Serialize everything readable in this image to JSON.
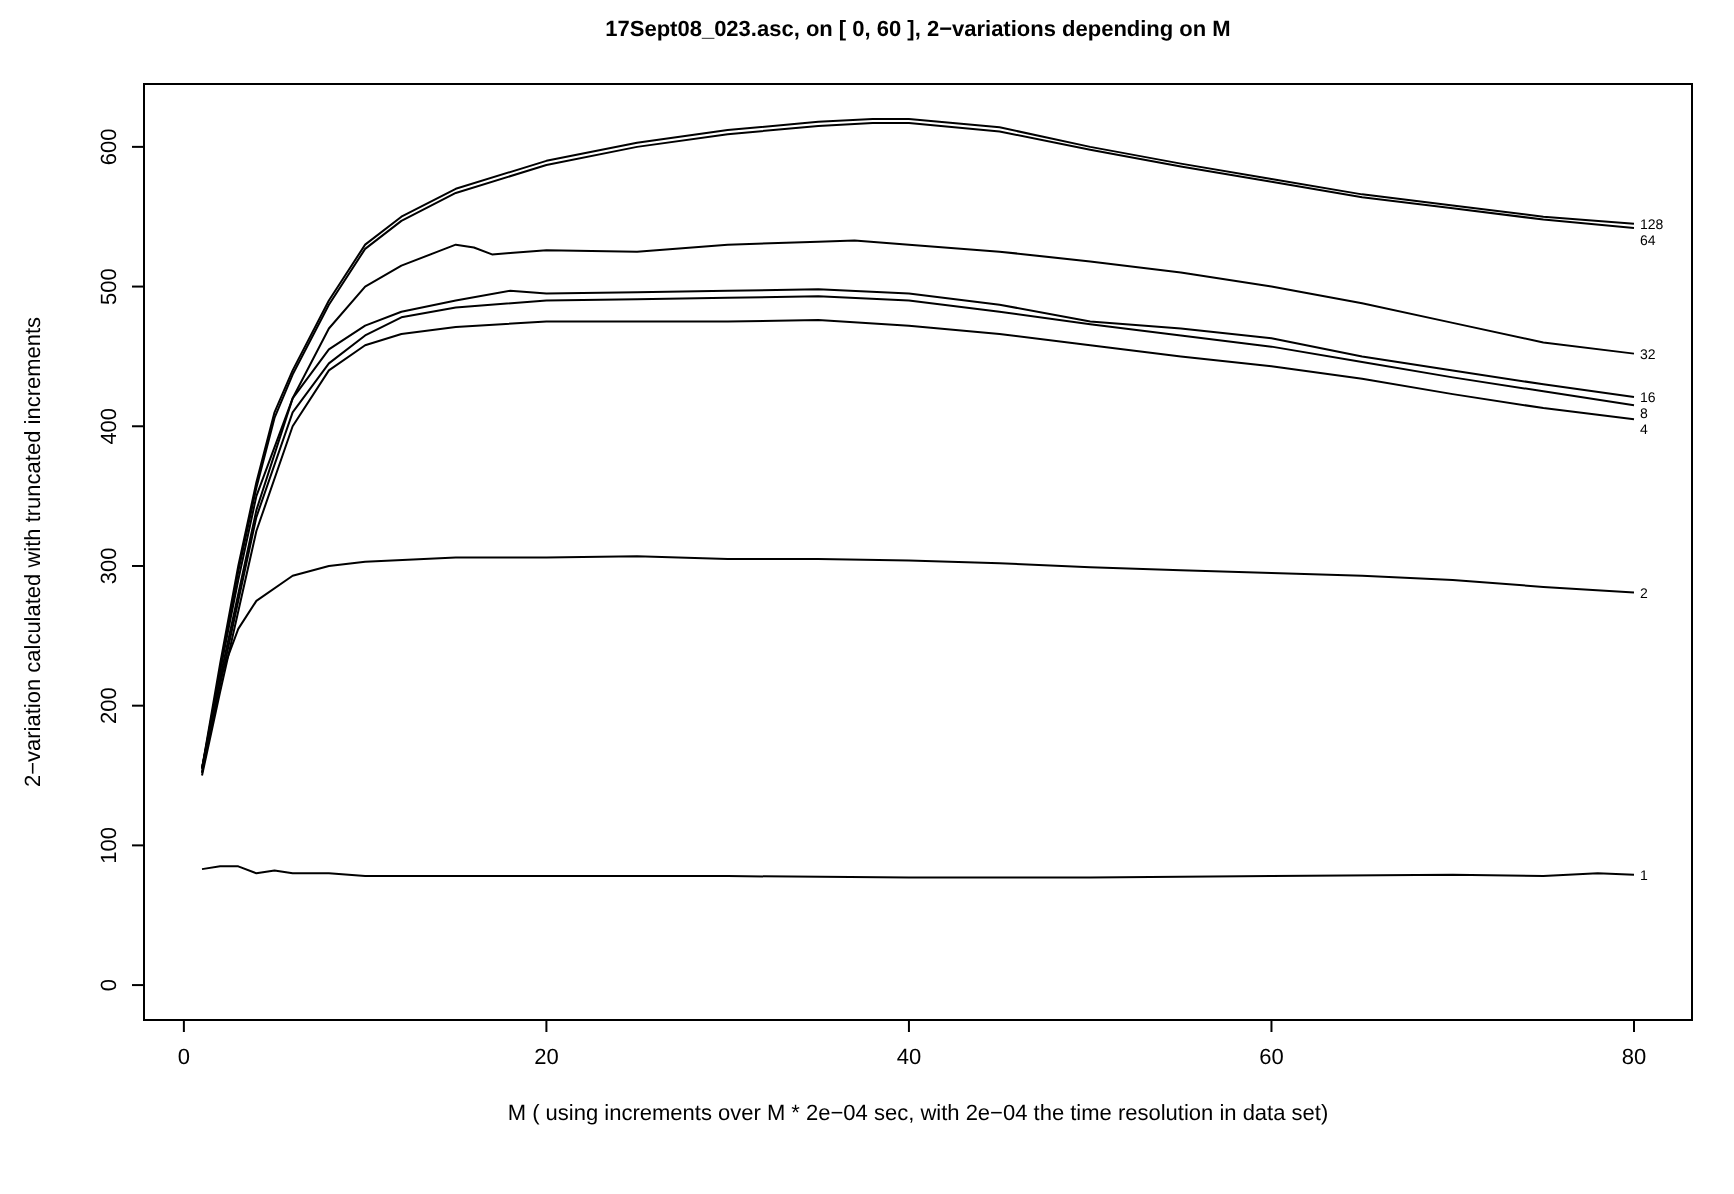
{
  "chart_data": {
    "type": "line",
    "title": "17Sept08_023.asc, on [ 0, 60 ], 2−variations depending on M",
    "xlabel": "M ( using increments over M * 2e−04 sec, with 2e−04 the time resolution in data set)",
    "ylabel": "2−variation calculated with truncated increments",
    "xlim": [
      -2.2,
      83.2
    ],
    "ylim": [
      -25,
      645
    ],
    "xticks": [
      0,
      20,
      40,
      60,
      80
    ],
    "yticks": [
      0,
      100,
      200,
      300,
      400,
      500,
      600
    ],
    "grid": false,
    "line_style": "solid",
    "series": [
      {
        "name": "128",
        "color": "#000000",
        "x": [
          1,
          2,
          3,
          4,
          5,
          6,
          8,
          10,
          12,
          15,
          20,
          25,
          30,
          35,
          38,
          40,
          45,
          50,
          55,
          60,
          65,
          70,
          75,
          80
        ],
        "values": [
          155,
          230,
          300,
          360,
          410,
          440,
          490,
          530,
          550,
          570,
          590,
          603,
          612,
          618,
          620,
          620,
          614,
          600,
          588,
          577,
          566,
          558,
          550,
          545
        ]
      },
      {
        "name": "64",
        "color": "#000000",
        "x": [
          1,
          2,
          3,
          4,
          5,
          6,
          8,
          10,
          12,
          15,
          20,
          25,
          30,
          35,
          38,
          40,
          45,
          50,
          55,
          60,
          65,
          70,
          75,
          80
        ],
        "values": [
          152,
          226,
          296,
          356,
          406,
          437,
          487,
          527,
          547,
          567,
          587,
          600,
          609,
          615,
          617,
          617,
          611,
          598,
          586,
          575,
          564,
          556,
          548,
          542
        ]
      },
      {
        "name": "32",
        "color": "#000000",
        "x": [
          1,
          2,
          3,
          4,
          6,
          8,
          10,
          12,
          14,
          15,
          16,
          17,
          18,
          20,
          25,
          30,
          35,
          37,
          40,
          45,
          50,
          55,
          60,
          65,
          70,
          75,
          80
        ],
        "values": [
          155,
          225,
          290,
          350,
          420,
          470,
          500,
          515,
          525,
          530,
          528,
          523,
          524,
          526,
          525,
          530,
          532,
          533,
          530,
          525,
          518,
          510,
          500,
          488,
          474,
          460,
          452
        ]
      },
      {
        "name": "16",
        "color": "#000000",
        "x": [
          1,
          2,
          4,
          6,
          8,
          10,
          12,
          15,
          18,
          20,
          25,
          30,
          35,
          40,
          45,
          50,
          55,
          60,
          65,
          70,
          75,
          80
        ],
        "values": [
          155,
          220,
          340,
          420,
          455,
          472,
          482,
          490,
          497,
          495,
          496,
          497,
          498,
          495,
          487,
          475,
          470,
          463,
          450,
          440,
          430,
          421
        ]
      },
      {
        "name": "8",
        "color": "#000000",
        "x": [
          1,
          2,
          4,
          6,
          8,
          10,
          12,
          15,
          20,
          25,
          30,
          35,
          40,
          45,
          50,
          55,
          60,
          65,
          70,
          75,
          80
        ],
        "values": [
          152,
          215,
          335,
          410,
          445,
          465,
          478,
          485,
          490,
          491,
          492,
          493,
          490,
          482,
          473,
          465,
          457,
          446,
          435,
          425,
          415
        ]
      },
      {
        "name": "4",
        "color": "#000000",
        "x": [
          1,
          2,
          4,
          6,
          8,
          10,
          12,
          15,
          20,
          25,
          30,
          35,
          40,
          45,
          50,
          55,
          60,
          65,
          70,
          75,
          80
        ],
        "values": [
          150,
          210,
          325,
          400,
          440,
          458,
          466,
          471,
          475,
          475,
          475,
          476,
          472,
          466,
          458,
          450,
          443,
          434,
          423,
          413,
          405
        ]
      },
      {
        "name": "2",
        "color": "#000000",
        "x": [
          1,
          2,
          3,
          4,
          6,
          8,
          10,
          15,
          20,
          25,
          30,
          35,
          40,
          45,
          50,
          55,
          60,
          65,
          70,
          75,
          80
        ],
        "values": [
          155,
          220,
          255,
          275,
          293,
          300,
          303,
          306,
          306,
          307,
          305,
          305,
          304,
          302,
          299,
          297,
          295,
          293,
          290,
          285,
          281
        ]
      },
      {
        "name": "1",
        "color": "#000000",
        "x": [
          1,
          2,
          3,
          4,
          5,
          6,
          8,
          10,
          15,
          20,
          30,
          40,
          50,
          60,
          70,
          75,
          78,
          80
        ],
        "values": [
          83,
          85,
          85,
          80,
          82,
          80,
          80,
          78,
          78,
          78,
          78,
          77,
          77,
          78,
          79,
          78,
          80,
          79
        ]
      }
    ]
  }
}
